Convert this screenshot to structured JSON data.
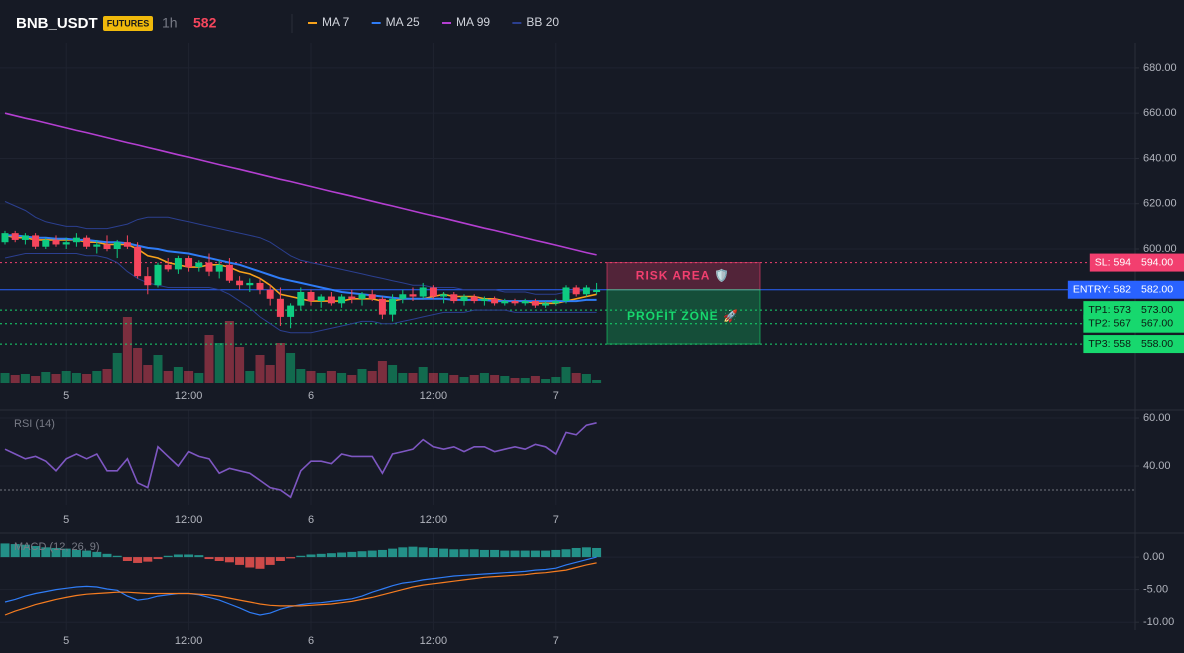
{
  "header": {
    "symbol": "BNB_USDT",
    "market": "FUTURES",
    "interval": "1h",
    "price": 582
  },
  "chart_data": [
    {
      "type": "candlestick",
      "categories": [
        null,
        null,
        null,
        null,
        null,
        null,
        "5",
        null,
        null,
        null,
        null,
        null,
        null,
        null,
        null,
        null,
        null,
        null,
        "12:00",
        null,
        null,
        null,
        null,
        null,
        null,
        null,
        null,
        null,
        null,
        null,
        "6",
        null,
        null,
        null,
        null,
        null,
        null,
        null,
        null,
        null,
        null,
        null,
        "12:00",
        null,
        null,
        null,
        null,
        null,
        null,
        null,
        null,
        null,
        null,
        null,
        "7",
        null,
        null,
        null,
        null
      ],
      "open": [
        603,
        607,
        604,
        606,
        601,
        604,
        602,
        603,
        605,
        601,
        602,
        600,
        603,
        601,
        588,
        584,
        593,
        591,
        596,
        592,
        594,
        590,
        593,
        586,
        584,
        585,
        582,
        578,
        570,
        575,
        581,
        577,
        579,
        576,
        579,
        578,
        580,
        578,
        571,
        578,
        580,
        579,
        583,
        579,
        580,
        577,
        579,
        577,
        578,
        576,
        577,
        576,
        577,
        575,
        576,
        577,
        583,
        580,
        581
      ],
      "high": [
        608,
        608,
        607,
        607,
        605,
        606,
        605,
        607,
        606,
        604,
        606,
        604,
        606,
        603,
        592,
        594,
        596,
        597,
        597,
        595,
        598,
        595,
        596,
        588,
        587,
        587,
        584,
        583,
        576,
        583,
        582,
        580,
        581,
        580,
        582,
        581,
        582,
        579,
        580,
        582,
        583,
        585,
        584,
        581,
        581,
        580,
        580,
        579,
        579,
        578,
        578,
        578,
        578,
        577,
        578,
        584,
        584,
        584,
        585
      ],
      "low": [
        602,
        603,
        602,
        600,
        600,
        601,
        600,
        601,
        600,
        598,
        599,
        596,
        600,
        587,
        580,
        583,
        590,
        589,
        590,
        590,
        588,
        587,
        585,
        582,
        581,
        580,
        575,
        566,
        565,
        573,
        575,
        574,
        575,
        574,
        576,
        575,
        577,
        569,
        568,
        576,
        577,
        578,
        578,
        576,
        576,
        575,
        576,
        575,
        575,
        575,
        575,
        575,
        574,
        574,
        575,
        576,
        579,
        579,
        580
      ],
      "close": [
        607,
        604,
        606,
        601,
        604,
        602,
        603,
        605,
        601,
        602,
        600,
        603,
        601,
        588,
        584,
        593,
        591,
        596,
        592,
        594,
        590,
        593,
        586,
        584,
        585,
        582,
        578,
        570,
        575,
        581,
        577,
        579,
        576,
        579,
        578,
        580,
        578,
        571,
        578,
        580,
        579,
        583,
        579,
        580,
        577,
        579,
        577,
        578,
        576,
        577,
        576,
        577,
        575,
        576,
        577,
        583,
        580,
        583,
        582
      ],
      "volume": [
        10,
        8,
        9,
        7,
        11,
        9,
        12,
        10,
        9,
        12,
        14,
        30,
        66,
        35,
        18,
        28,
        12,
        16,
        12,
        10,
        48,
        40,
        62,
        36,
        12,
        28,
        18,
        40,
        30,
        14,
        12,
        10,
        12,
        10,
        8,
        14,
        12,
        22,
        18,
        10,
        10,
        16,
        10,
        10,
        8,
        6,
        8,
        10,
        8,
        7,
        5,
        5,
        7,
        4,
        6,
        16,
        10,
        9,
        3
      ],
      "up_color": "#0ecb81",
      "down_color": "#f6465d",
      "series": [
        {
          "name": "MA 7",
          "color": "#f7a21b",
          "values": [
            606,
            605,
            605,
            604,
            604,
            604,
            604,
            604,
            603,
            603,
            602,
            602,
            602,
            600,
            597,
            596,
            594,
            593,
            592,
            592,
            593,
            593,
            592,
            590,
            589,
            587,
            584,
            580,
            579,
            578,
            577,
            577,
            577,
            577,
            578,
            578,
            578,
            577,
            577,
            578,
            578,
            578,
            579,
            580,
            579,
            579,
            579,
            578,
            578,
            577,
            577,
            577,
            576,
            576,
            576,
            577,
            578,
            579,
            580
          ]
        },
        {
          "name": "MA 25",
          "color": "#2f7cf6",
          "values": [
            606,
            606,
            605.5,
            605,
            605,
            604.5,
            604.5,
            604,
            604,
            603.5,
            603,
            603,
            602.5,
            601.5,
            600.5,
            600,
            599,
            598.5,
            598,
            597,
            596,
            595,
            594,
            593,
            591.5,
            590,
            588.5,
            587,
            586,
            585,
            584,
            583,
            582,
            581,
            580.5,
            580,
            579.5,
            579,
            578.5,
            578,
            578,
            578,
            578,
            578,
            577.5,
            577.5,
            577.5,
            577.5,
            577,
            577,
            577,
            577,
            577,
            577,
            577,
            577,
            577,
            577.5,
            577.5
          ]
        },
        {
          "name": "MA 99",
          "color": "#b43fd1",
          "values": [
            660.0,
            658.9,
            657.8,
            656.8,
            655.7,
            654.6,
            653.5,
            652.4,
            651.4,
            650.3,
            649.2,
            648.1,
            647.0,
            646.0,
            644.9,
            643.8,
            642.7,
            641.6,
            640.6,
            639.5,
            638.4,
            637.3,
            636.2,
            635.2,
            634.1,
            633.0,
            631.9,
            630.8,
            629.8,
            628.7,
            627.6,
            626.5,
            625.4,
            624.4,
            623.3,
            622.2,
            621.1,
            620.0,
            619.0,
            617.9,
            616.8,
            615.7,
            614.6,
            613.6,
            612.5,
            611.4,
            610.3,
            609.2,
            608.2,
            607.1,
            606.0,
            604.9,
            603.8,
            602.8,
            601.7,
            600.6,
            599.5,
            598.4,
            597.4
          ]
        },
        {
          "name": "BB 20",
          "color": "#2b3f8f",
          "upper": [
            621,
            619,
            617,
            614,
            612,
            611,
            610,
            610,
            609,
            609,
            609,
            610,
            611,
            613,
            614,
            614,
            614,
            613,
            612,
            611,
            610,
            609,
            608,
            607,
            606,
            605,
            603,
            600,
            597,
            595,
            594,
            593,
            592,
            591,
            590,
            589,
            588,
            587,
            586,
            585,
            584,
            584,
            583,
            583,
            583,
            582,
            582,
            582,
            582,
            581,
            581,
            581,
            580,
            580,
            580,
            581,
            581,
            582,
            582
          ],
          "lower": [
            596,
            597,
            598,
            598,
            598,
            598,
            598,
            598,
            597,
            597,
            596,
            594,
            590,
            587,
            585,
            584,
            583,
            583,
            583,
            583,
            583,
            582,
            580,
            577,
            574,
            570,
            567,
            564,
            563,
            563,
            563,
            564,
            565,
            566,
            567,
            568,
            568,
            567,
            567,
            568,
            569,
            570,
            571,
            572,
            572,
            572,
            573,
            573,
            573,
            573,
            572,
            572,
            572,
            572,
            572,
            572,
            572,
            572,
            572
          ]
        }
      ],
      "ylim": [
        540.8,
        691.0
      ],
      "yticks": [
        {
          "value": 680,
          "label": "680.00"
        },
        {
          "value": 660,
          "label": "660.00"
        },
        {
          "value": 640,
          "label": "640.00"
        },
        {
          "value": 620,
          "label": "620.00"
        },
        {
          "value": 600,
          "label": "600.00"
        }
      ],
      "levels": [
        {
          "label": "SL: 594",
          "value": 594,
          "value_label": "594.00",
          "color": "#f23f6f",
          "text_color": "#ffffff",
          "style": "dotted"
        },
        {
          "label": "ENTRY: 582",
          "value": 582,
          "value_label": "582.00",
          "color": "#2962ff",
          "text_color": "#ffffff",
          "style": "solid"
        },
        {
          "label": "TP1: 573",
          "value": 573,
          "value_label": "573.00",
          "color": "#17d86e",
          "text_color": "#0b1a12",
          "style": "dotted"
        },
        {
          "label": "TP2: 567",
          "value": 567,
          "value_label": "567.00",
          "color": "#17d86e",
          "text_color": "#0b1a12",
          "style": "dotted"
        },
        {
          "label": "TP3: 558",
          "value": 558,
          "value_label": "558.00",
          "color": "#17d86e",
          "text_color": "#0b1a12",
          "style": "dotted"
        }
      ],
      "zones": [
        {
          "label": "RISK AREA 🛡️",
          "from": 582,
          "to": 594,
          "color": "#f23f6f"
        },
        {
          "label": "PROFIT ZONE 🚀",
          "from": 558,
          "to": 582,
          "color": "#17d86e"
        }
      ]
    },
    {
      "type": "line",
      "title": "RSI (14)",
      "color": "#7e57c2",
      "categories": [
        null,
        null,
        null,
        null,
        null,
        null,
        "5",
        null,
        null,
        null,
        null,
        null,
        null,
        null,
        null,
        null,
        null,
        null,
        "12:00",
        null,
        null,
        null,
        null,
        null,
        null,
        null,
        null,
        null,
        null,
        null,
        "6",
        null,
        null,
        null,
        null,
        null,
        null,
        null,
        null,
        null,
        null,
        null,
        "12:00",
        null,
        null,
        null,
        null,
        null,
        null,
        null,
        null,
        null,
        null,
        null,
        "7",
        null,
        null,
        null,
        null
      ],
      "values": [
        47,
        45,
        43,
        44,
        42,
        38,
        43,
        45,
        43,
        45,
        38,
        38,
        43,
        33,
        31,
        48,
        44,
        40,
        46,
        44,
        43,
        37,
        39,
        38,
        37,
        34,
        31,
        30,
        27,
        38,
        42,
        42,
        41,
        45,
        44,
        44,
        44,
        37,
        45,
        46,
        47,
        51,
        48,
        47,
        48,
        46,
        48,
        48,
        46,
        47,
        48,
        47,
        49,
        48,
        45,
        54,
        53,
        57,
        58
      ],
      "levels": [
        30
      ],
      "ylim": [
        23.75,
        63.35
      ],
      "yticks": [
        {
          "value": 60,
          "label": "60.00"
        },
        {
          "value": 40,
          "label": "40.00"
        }
      ]
    },
    {
      "type": "macd",
      "title": "MACD (12, 26, 9)",
      "categories": [
        null,
        null,
        null,
        null,
        null,
        null,
        "5",
        null,
        null,
        null,
        null,
        null,
        null,
        null,
        null,
        null,
        null,
        null,
        "12:00",
        null,
        null,
        null,
        null,
        null,
        null,
        null,
        null,
        null,
        null,
        null,
        "6",
        null,
        null,
        null,
        null,
        null,
        null,
        null,
        null,
        null,
        null,
        null,
        "12:00",
        null,
        null,
        null,
        null,
        null,
        null,
        null,
        null,
        null,
        null,
        null,
        "7",
        null,
        null,
        null,
        null
      ],
      "histogram": [
        2.1,
        2.0,
        1.9,
        1.7,
        1.5,
        1.4,
        1.3,
        1.1,
        1.0,
        0.8,
        0.5,
        0.2,
        -0.6,
        -0.9,
        -0.7,
        -0.3,
        0.2,
        0.4,
        0.4,
        0.3,
        -0.3,
        -0.6,
        -0.8,
        -1.2,
        -1.6,
        -1.8,
        -1.2,
        -0.6,
        -0.2,
        0.2,
        0.4,
        0.5,
        0.6,
        0.7,
        0.8,
        0.9,
        1.0,
        1.1,
        1.3,
        1.5,
        1.6,
        1.5,
        1.4,
        1.3,
        1.2,
        1.2,
        1.2,
        1.1,
        1.1,
        1.0,
        1.0,
        1.0,
        1.0,
        1.0,
        1.1,
        1.2,
        1.4,
        1.5,
        1.4
      ],
      "up_color": "#26a69a",
      "down_color": "#ef5350",
      "series": [
        {
          "color": "#2f7cf6",
          "values": [
            -6.9,
            -6.5,
            -6.0,
            -5.6,
            -5.3,
            -5.0,
            -4.8,
            -4.6,
            -4.5,
            -4.6,
            -4.9,
            -5.1,
            -6.0,
            -6.6,
            -6.4,
            -6.0,
            -5.8,
            -5.6,
            -5.6,
            -5.8,
            -6.2,
            -6.6,
            -7.2,
            -7.8,
            -8.5,
            -8.9,
            -8.6,
            -8.0,
            -7.6,
            -7.3,
            -7.1,
            -7.0,
            -6.8,
            -6.6,
            -6.4,
            -6.0,
            -5.4,
            -4.9,
            -4.4,
            -4.0,
            -3.8,
            -3.5,
            -3.3,
            -3.1,
            -2.9,
            -2.8,
            -2.7,
            -2.6,
            -2.5,
            -2.4,
            -2.3,
            -2.2,
            -2.0,
            -1.9,
            -1.7,
            -1.2,
            -0.8,
            -0.4,
            0.0
          ]
        },
        {
          "color": "#f57c20",
          "values": [
            -8.9,
            -8.3,
            -7.8,
            -7.3,
            -6.9,
            -6.5,
            -6.2,
            -5.9,
            -5.7,
            -5.6,
            -5.5,
            -5.4,
            -5.4,
            -5.5,
            -5.6,
            -5.6,
            -5.6,
            -5.6,
            -5.6,
            -5.7,
            -5.8,
            -6.0,
            -6.3,
            -6.6,
            -6.9,
            -7.2,
            -7.4,
            -7.5,
            -7.5,
            -7.5,
            -7.4,
            -7.3,
            -7.2,
            -7.0,
            -6.8,
            -6.5,
            -6.2,
            -5.8,
            -5.4,
            -5.0,
            -4.6,
            -4.3,
            -4.1,
            -3.9,
            -3.7,
            -3.5,
            -3.3,
            -3.1,
            -3.0,
            -2.9,
            -2.8,
            -2.7,
            -2.5,
            -2.4,
            -2.2,
            -2.0,
            -1.6,
            -1.2,
            -0.9
          ]
        }
      ],
      "ylim": [
        -11.2,
        3.7
      ],
      "yticks": [
        {
          "value": 0,
          "label": "0.00"
        },
        {
          "value": -5,
          "label": "-5.00"
        },
        {
          "value": -10,
          "label": "-10.00"
        }
      ]
    }
  ]
}
